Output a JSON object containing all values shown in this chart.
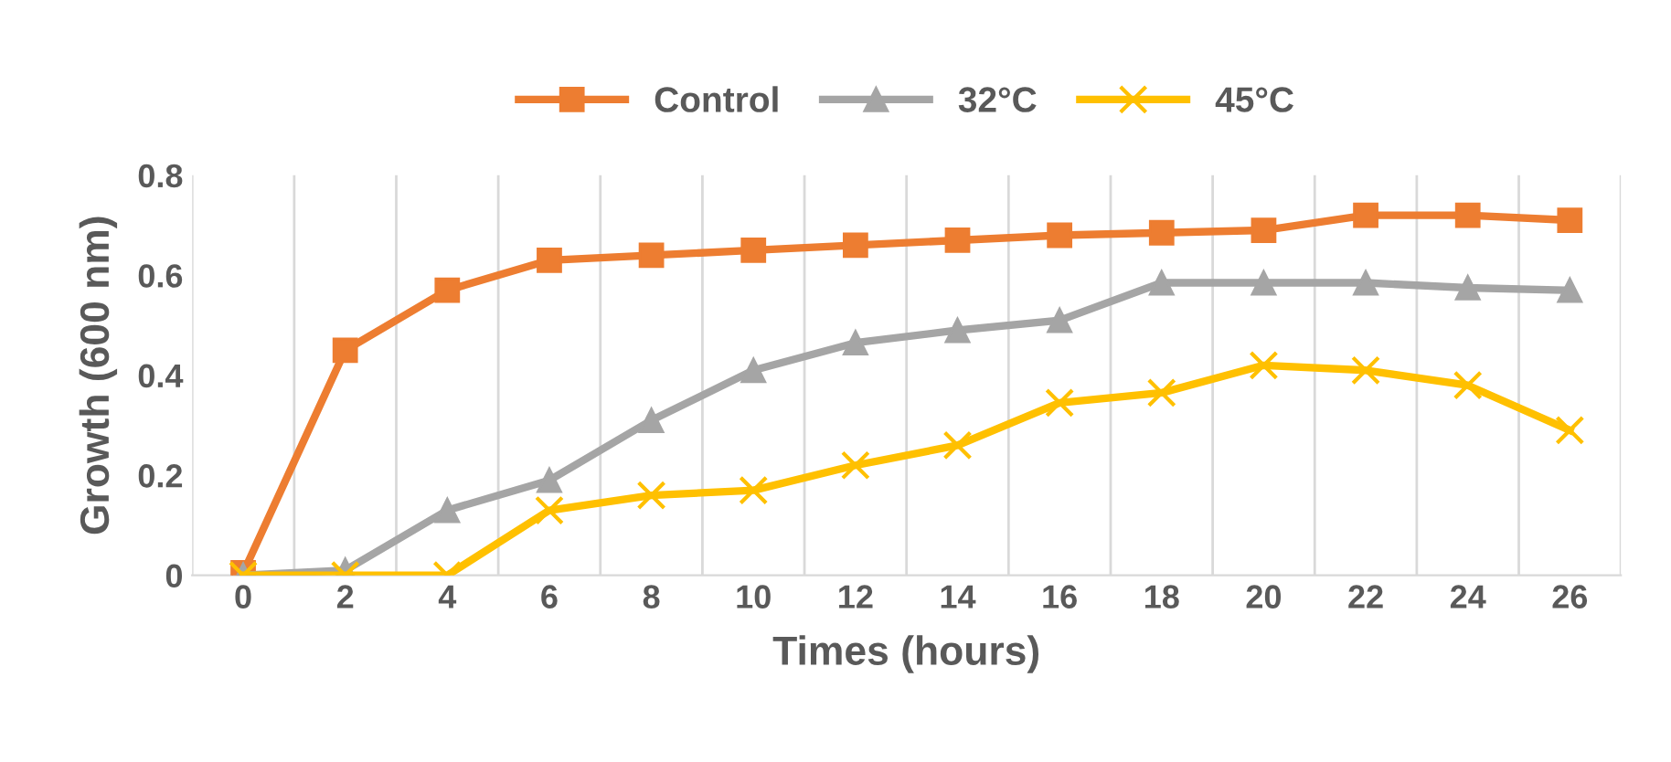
{
  "chart_data": {
    "type": "line",
    "xlabel": "Times (hours)",
    "ylabel": "Growth (600 nm)",
    "categories": [
      "0",
      "2",
      "4",
      "6",
      "8",
      "10",
      "12",
      "14",
      "16",
      "18",
      "20",
      "22",
      "24",
      "26"
    ],
    "series": [
      {
        "name": "Control",
        "color": "#ed7d31",
        "marker": "square",
        "values": [
          0.005,
          0.45,
          0.57,
          0.63,
          0.64,
          0.65,
          0.66,
          0.67,
          0.68,
          0.685,
          0.69,
          0.72,
          0.72,
          0.71
        ]
      },
      {
        "name": "32°C",
        "color": "#a5a5a5",
        "marker": "triangle",
        "values": [
          0,
          0.01,
          0.13,
          0.19,
          0.31,
          0.41,
          0.465,
          0.49,
          0.51,
          0.585,
          0.585,
          0.585,
          0.575,
          0.57
        ]
      },
      {
        "name": "45°C",
        "color": "#ffc000",
        "marker": "cross",
        "values": [
          0,
          0,
          0,
          0.13,
          0.16,
          0.17,
          0.22,
          0.26,
          0.345,
          0.365,
          0.42,
          0.41,
          0.38,
          0.29
        ]
      }
    ],
    "ylim": [
      0,
      0.8
    ],
    "yticks": [
      {
        "value": 0,
        "label": "0"
      },
      0.2,
      0.4,
      0.6,
      0.8
    ],
    "grid": "x",
    "legend": "top",
    "line_style": "solid"
  }
}
